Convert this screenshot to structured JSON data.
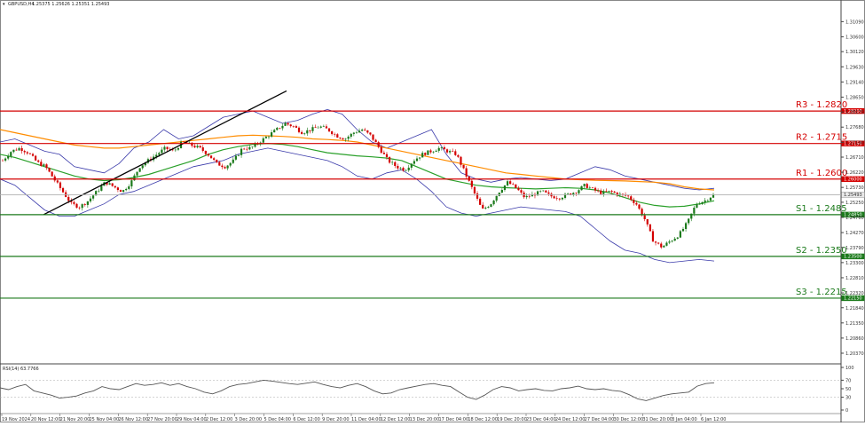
{
  "chart_data": {
    "type": "candlestick",
    "header": {
      "symbol": "GBPUSD,H4",
      "quote": "1.25375 1.25626 1.25351 1.25493"
    },
    "price_axis": {
      "ylim": [
        1.2014,
        1.3156
      ],
      "ticks": [
        "1.31090",
        "1.30600",
        "1.30120",
        "1.29630",
        "1.29140",
        "1.28650",
        "1.28170",
        "1.27680",
        "1.27190",
        "1.26710",
        "1.26220",
        "1.25730",
        "1.25250",
        "1.24760",
        "1.24270",
        "1.23790",
        "1.23300",
        "1.22810",
        "1.22320",
        "1.21840",
        "1.21350",
        "1.20860",
        "1.20370"
      ],
      "tick_values": [
        1.3109,
        1.306,
        1.3012,
        1.2963,
        1.2914,
        1.2865,
        1.2817,
        1.2768,
        1.2719,
        1.2671,
        1.2622,
        1.2573,
        1.2525,
        1.2476,
        1.2427,
        1.2379,
        1.233,
        1.2281,
        1.2232,
        1.2184,
        1.2135,
        1.2086,
        1.2037
      ]
    },
    "levels": [
      {
        "name": "R3",
        "label": "R3 - 1.2820",
        "value": 1.282,
        "tag": "1.28200",
        "color": "#d40000"
      },
      {
        "name": "R2",
        "label": "R2 - 1.2715",
        "value": 1.2715,
        "tag": "1.27150",
        "color": "#d40000"
      },
      {
        "name": "R1",
        "label": "R1 - 1.2600",
        "value": 1.26,
        "tag": "1.26000",
        "color": "#d40000"
      },
      {
        "name": "S1",
        "label": "S1 - 1.2485",
        "value": 1.2485,
        "tag": "1.24850",
        "color": "#1b7a1b"
      },
      {
        "name": "S2",
        "label": "S2 - 1.2350",
        "value": 1.235,
        "tag": "1.23500",
        "color": "#1b7a1b"
      },
      {
        "name": "S3",
        "label": "S3 - 1.2215",
        "value": 1.2215,
        "tag": "1.22150",
        "color": "#1b7a1b"
      }
    ],
    "current_price": {
      "value": 1.25493,
      "tag": "1.25493"
    },
    "x_labels": [
      "19 Nov 2024",
      "20 Nov 12:00",
      "21 Nov 20:00",
      "25 Nov 04:00",
      "26 Nov 12:00",
      "27 Nov 20:00",
      "29 Nov 04:00",
      "2 Dec 12:00",
      "3 Dec 20:00",
      "5 Dec 04:00",
      "6 Dec 12:00",
      "9 Dec 20:00",
      "11 Dec 04:00",
      "12 Dec 12:00",
      "13 Dec 20:00",
      "17 Dec 04:00",
      "18 Dec 12:00",
      "19 Dec 20:00",
      "23 Dec 04:00",
      "24 Dec 12:00",
      "27 Dec 04:00",
      "30 Dec 12:00",
      "31 Dec 20:00",
      "3 Jan 04:00",
      "6 Jan 12:00"
    ],
    "close_path": [
      1.266,
      1.269,
      1.27,
      1.2685,
      1.2655,
      1.264,
      1.26,
      1.256,
      1.252,
      1.251,
      1.253,
      1.256,
      1.259,
      1.2575,
      1.256,
      1.259,
      1.264,
      1.266,
      1.268,
      1.27,
      1.269,
      1.272,
      1.271,
      1.27,
      1.268,
      1.265,
      1.264,
      1.266,
      1.27,
      1.27,
      1.272,
      1.274,
      1.276,
      1.278,
      1.277,
      1.275,
      1.276,
      1.277,
      1.276,
      1.274,
      1.273,
      1.275,
      1.276,
      1.274,
      1.27,
      1.266,
      1.264,
      1.263,
      1.266,
      1.268,
      1.269,
      1.27,
      1.269,
      1.268,
      1.262,
      1.256,
      1.25,
      1.252,
      1.256,
      1.259,
      1.257,
      1.254,
      1.255,
      1.256,
      1.2545,
      1.254,
      1.255,
      1.256,
      1.258,
      1.2565,
      1.2555,
      1.256,
      1.255,
      1.2545,
      1.252,
      1.247,
      1.24,
      1.238,
      1.24,
      1.242,
      1.246,
      1.252,
      1.253,
      1.2549
    ],
    "ema_orange": [
      1.276,
      1.275,
      1.274,
      1.273,
      1.272,
      1.271,
      1.2705,
      1.27,
      1.27,
      1.2705,
      1.271,
      1.2715,
      1.272,
      1.2725,
      1.273,
      1.2735,
      1.274,
      1.2742,
      1.274,
      1.2738,
      1.2735,
      1.273,
      1.2728,
      1.2725,
      1.272,
      1.271,
      1.27,
      1.269,
      1.268,
      1.267,
      1.266,
      1.265,
      1.264,
      1.263,
      1.262,
      1.2615,
      1.261,
      1.2605,
      1.26,
      1.2598,
      1.2596,
      1.2595,
      1.2594,
      1.2592,
      1.259,
      1.2585,
      1.2575,
      1.2568,
      1.2565
    ],
    "ema_green": [
      1.268,
      1.267,
      1.2655,
      1.264,
      1.2625,
      1.261,
      1.26,
      1.2595,
      1.2598,
      1.2605,
      1.2615,
      1.263,
      1.2645,
      1.266,
      1.268,
      1.2695,
      1.2705,
      1.2712,
      1.2715,
      1.2712,
      1.2705,
      1.2695,
      1.2685,
      1.268,
      1.2675,
      1.2672,
      1.2668,
      1.266,
      1.264,
      1.262,
      1.26,
      1.259,
      1.258,
      1.2575,
      1.2572,
      1.257,
      1.2568,
      1.257,
      1.2572,
      1.257,
      1.2565,
      1.2555,
      1.254,
      1.2525,
      1.2515,
      1.251,
      1.2512,
      1.252,
      1.253
    ],
    "bb_upper": [
      1.272,
      1.273,
      1.271,
      1.269,
      1.268,
      1.264,
      1.263,
      1.262,
      1.265,
      1.27,
      1.272,
      1.276,
      1.273,
      1.274,
      1.277,
      1.28,
      1.281,
      1.282,
      1.28,
      1.278,
      1.279,
      1.281,
      1.2825,
      1.281,
      1.276,
      1.272,
      1.27,
      1.272,
      1.274,
      1.276,
      1.268,
      1.262,
      1.26,
      1.259,
      1.26,
      1.2605,
      1.26,
      1.2595,
      1.26,
      1.262,
      1.264,
      1.263,
      1.261,
      1.26,
      1.259,
      1.258,
      1.257,
      1.2565,
      1.257
    ],
    "bb_lower": [
      1.26,
      1.258,
      1.254,
      1.25,
      1.248,
      1.248,
      1.25,
      1.252,
      1.255,
      1.256,
      1.258,
      1.26,
      1.262,
      1.264,
      1.265,
      1.266,
      1.268,
      1.269,
      1.27,
      1.269,
      1.268,
      1.267,
      1.266,
      1.264,
      1.261,
      1.26,
      1.262,
      1.263,
      1.26,
      1.256,
      1.251,
      1.249,
      1.248,
      1.249,
      1.25,
      1.251,
      1.2505,
      1.25,
      1.2495,
      1.248,
      1.244,
      1.24,
      1.237,
      1.236,
      1.234,
      1.233,
      1.2335,
      1.234,
      1.2335
    ],
    "trendline": {
      "from": [
        0.05,
        1.2485
      ],
      "to": [
        0.34,
        1.2885
      ],
      "color": "#000000"
    },
    "rsi": {
      "label": "RSI(14) 63.7766",
      "ylim": [
        0,
        100
      ],
      "ticks": [
        "100",
        "70",
        "50",
        "30",
        "0"
      ],
      "tick_values": [
        100,
        70,
        50,
        30,
        0
      ],
      "values": [
        52,
        48,
        55,
        60,
        45,
        40,
        35,
        28,
        30,
        33,
        40,
        45,
        55,
        50,
        48,
        55,
        62,
        58,
        60,
        64,
        58,
        62,
        55,
        50,
        42,
        38,
        45,
        55,
        60,
        62,
        66,
        70,
        68,
        65,
        62,
        60,
        63,
        66,
        60,
        55,
        52,
        58,
        62,
        55,
        45,
        38,
        40,
        48,
        52,
        56,
        60,
        62,
        58,
        55,
        42,
        30,
        25,
        35,
        48,
        55,
        52,
        45,
        48,
        50,
        46,
        45,
        50,
        52,
        56,
        50,
        48,
        50,
        46,
        44,
        36,
        26,
        22,
        28,
        34,
        38,
        40,
        42,
        56,
        62,
        64
      ]
    },
    "colors": {
      "bull": "#1b7a1b",
      "bear": "#d40000",
      "ema_orange": "#ff8c00",
      "ema_green": "#2aa02a",
      "bands": "#3a3aaa",
      "rsi": "#555555"
    }
  }
}
